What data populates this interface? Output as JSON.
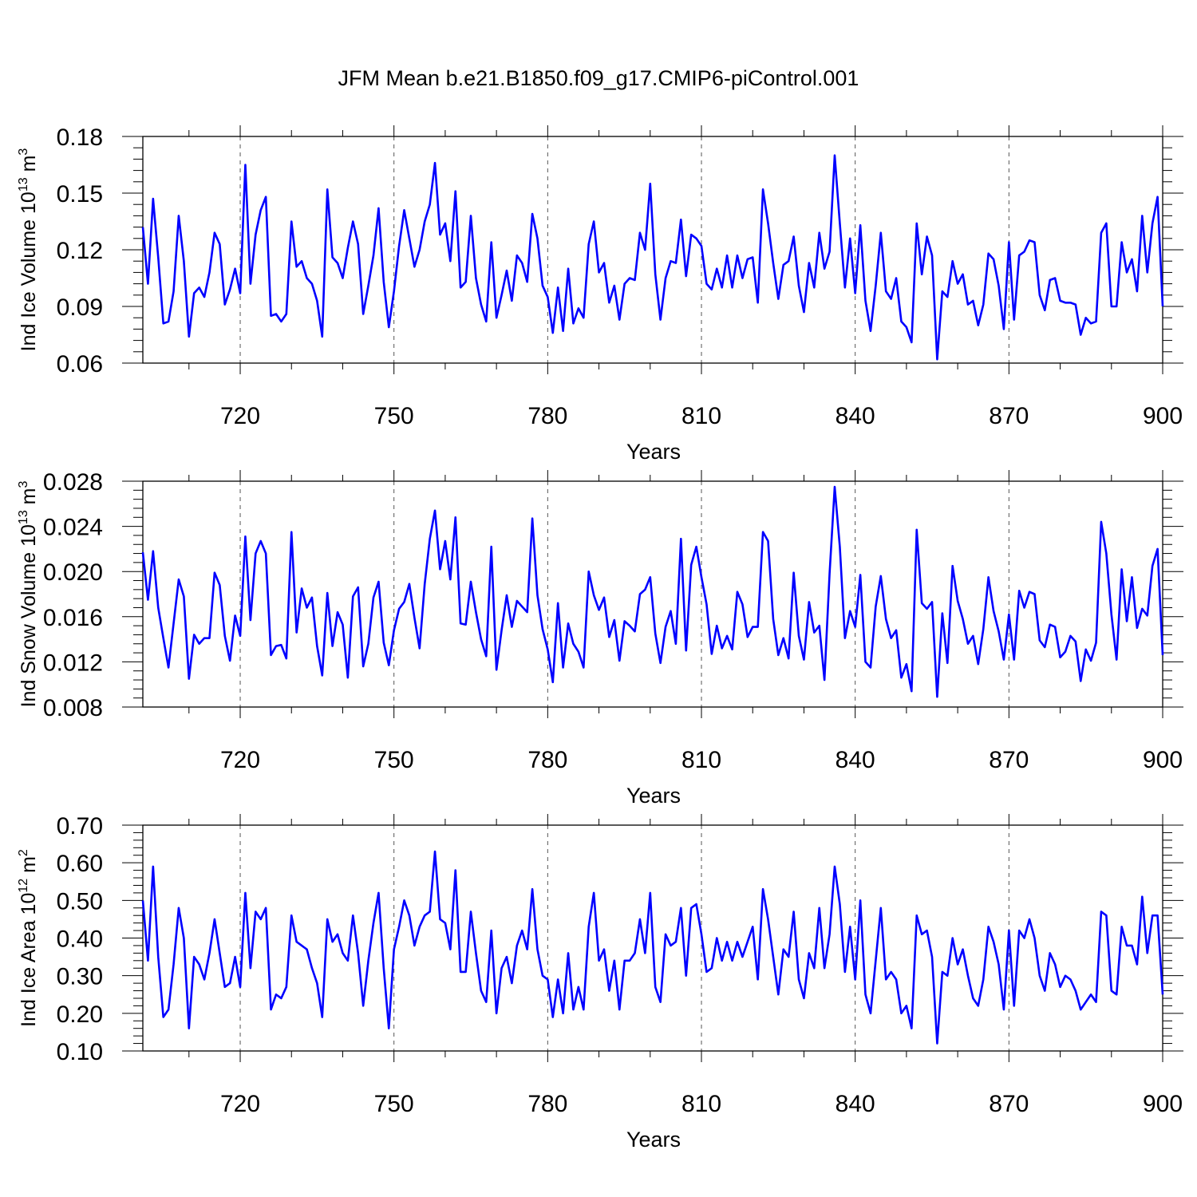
{
  "figure": {
    "title": "JFM Mean b.e21.B1850.f09_g17.CMIP6-piControl.001",
    "line_color": "#0000ff",
    "grid_color": "#555555",
    "x_ticks": [
      "720",
      "750",
      "780",
      "810",
      "840",
      "870",
      "900"
    ]
  },
  "chart_data": [
    {
      "type": "line",
      "title": "JFM Mean b.e21.B1850.f09_g17.CMIP6-piControl.001",
      "xlabel": "Years",
      "ylabel": "Ind Ice Volume 10¹³ m³",
      "ylabel_parts": [
        "Ind Ice Volume 10",
        "13",
        " m",
        "3"
      ],
      "xlim": [
        701,
        900
      ],
      "ylim": [
        0.06,
        0.18
      ],
      "yticks": [
        "0.06",
        "0.09",
        "0.12",
        "0.15",
        "0.18"
      ],
      "ytick_values": [
        0.06,
        0.09,
        0.12,
        0.15,
        0.18
      ],
      "grid": "vertical dashed at x ticks",
      "x_start": 701,
      "series": [
        {
          "values": [
            0.132,
            0.102,
            0.147,
            0.116,
            0.081,
            0.082,
            0.098,
            0.138,
            0.114,
            0.074,
            0.097,
            0.1,
            0.095,
            0.108,
            0.129,
            0.123,
            0.091,
            0.099,
            0.11,
            0.097,
            0.165,
            0.102,
            0.128,
            0.141,
            0.148,
            0.085,
            0.086,
            0.082,
            0.086,
            0.135,
            0.111,
            0.114,
            0.105,
            0.102,
            0.093,
            0.074,
            0.152,
            0.116,
            0.113,
            0.105,
            0.121,
            0.135,
            0.123,
            0.086,
            0.101,
            0.117,
            0.142,
            0.103,
            0.079,
            0.098,
            0.122,
            0.141,
            0.126,
            0.111,
            0.12,
            0.135,
            0.144,
            0.166,
            0.128,
            0.134,
            0.114,
            0.151,
            0.1,
            0.103,
            0.138,
            0.105,
            0.091,
            0.082,
            0.124,
            0.084,
            0.096,
            0.109,
            0.093,
            0.117,
            0.113,
            0.103,
            0.139,
            0.126,
            0.101,
            0.095,
            0.076,
            0.1,
            0.077,
            0.11,
            0.081,
            0.089,
            0.084,
            0.123,
            0.135,
            0.108,
            0.113,
            0.092,
            0.101,
            0.083,
            0.102,
            0.105,
            0.104,
            0.129,
            0.12,
            0.155,
            0.107,
            0.083,
            0.105,
            0.114,
            0.113,
            0.136,
            0.106,
            0.128,
            0.126,
            0.122,
            0.102,
            0.099,
            0.11,
            0.1,
            0.117,
            0.1,
            0.117,
            0.105,
            0.115,
            0.116,
            0.092,
            0.152,
            0.134,
            0.113,
            0.094,
            0.112,
            0.114,
            0.127,
            0.101,
            0.087,
            0.113,
            0.1,
            0.129,
            0.11,
            0.119,
            0.17,
            0.134,
            0.1,
            0.126,
            0.097,
            0.133,
            0.093,
            0.077,
            0.101,
            0.129,
            0.098,
            0.094,
            0.105,
            0.082,
            0.079,
            0.071,
            0.134,
            0.107,
            0.127,
            0.117,
            0.062,
            0.098,
            0.095,
            0.114,
            0.102,
            0.107,
            0.091,
            0.093,
            0.08,
            0.091,
            0.118,
            0.115,
            0.101,
            0.078,
            0.124,
            0.083,
            0.117,
            0.119,
            0.125,
            0.124,
            0.096,
            0.088,
            0.104,
            0.105,
            0.093,
            0.092,
            0.092,
            0.091,
            0.075,
            0.084,
            0.081,
            0.082,
            0.129,
            0.134,
            0.09,
            0.09,
            0.124,
            0.108,
            0.115,
            0.098,
            0.138,
            0.108,
            0.134,
            0.148,
            0.09
          ]
        }
      ]
    },
    {
      "type": "line",
      "xlabel": "Years",
      "ylabel": "Ind Snow Volume 10¹³ m³",
      "ylabel_parts": [
        "Ind Snow Volume 10",
        "13",
        " m",
        "3"
      ],
      "xlim": [
        701,
        900
      ],
      "ylim": [
        0.008,
        0.028
      ],
      "yticks": [
        "0.008",
        "0.012",
        "0.016",
        "0.020",
        "0.024",
        "0.028"
      ],
      "ytick_values": [
        0.008,
        0.012,
        0.016,
        0.02,
        0.024,
        0.028
      ],
      "grid": "vertical dashed at x ticks",
      "x_start": 701,
      "series": [
        {
          "values": [
            0.0217,
            0.0175,
            0.0218,
            0.0168,
            0.0141,
            0.0115,
            0.0154,
            0.0193,
            0.0178,
            0.0105,
            0.0144,
            0.0136,
            0.0141,
            0.0141,
            0.0199,
            0.0188,
            0.0143,
            0.0121,
            0.0161,
            0.0143,
            0.0231,
            0.0157,
            0.0216,
            0.0227,
            0.0216,
            0.0126,
            0.0134,
            0.0135,
            0.0123,
            0.0235,
            0.0146,
            0.0185,
            0.0168,
            0.0177,
            0.0134,
            0.0108,
            0.0181,
            0.0134,
            0.0164,
            0.0153,
            0.0106,
            0.0178,
            0.0186,
            0.0116,
            0.0136,
            0.0177,
            0.0191,
            0.0137,
            0.0117,
            0.0148,
            0.0167,
            0.0173,
            0.0189,
            0.0159,
            0.0132,
            0.0189,
            0.0229,
            0.0254,
            0.0202,
            0.0227,
            0.0193,
            0.0248,
            0.0154,
            0.0153,
            0.0191,
            0.0164,
            0.014,
            0.0125,
            0.0222,
            0.0113,
            0.0148,
            0.0179,
            0.0151,
            0.0174,
            0.0169,
            0.0164,
            0.0247,
            0.0179,
            0.0149,
            0.0131,
            0.0102,
            0.0172,
            0.0115,
            0.0154,
            0.0136,
            0.0129,
            0.0115,
            0.02,
            0.0179,
            0.0166,
            0.0177,
            0.0142,
            0.0157,
            0.0121,
            0.0156,
            0.0152,
            0.0147,
            0.018,
            0.0184,
            0.0195,
            0.0145,
            0.0119,
            0.0151,
            0.0165,
            0.0136,
            0.0229,
            0.013,
            0.0206,
            0.0222,
            0.0195,
            0.0171,
            0.0127,
            0.0152,
            0.0132,
            0.0143,
            0.0131,
            0.0182,
            0.0171,
            0.0142,
            0.0151,
            0.0151,
            0.0235,
            0.0227,
            0.0158,
            0.0126,
            0.0141,
            0.0123,
            0.0199,
            0.0143,
            0.0122,
            0.0173,
            0.0146,
            0.0152,
            0.0104,
            0.0198,
            0.0275,
            0.0222,
            0.0141,
            0.0165,
            0.0151,
            0.0197,
            0.012,
            0.0115,
            0.0169,
            0.0196,
            0.0158,
            0.0141,
            0.0148,
            0.0106,
            0.0118,
            0.0094,
            0.0237,
            0.0172,
            0.0167,
            0.0173,
            0.0089,
            0.0163,
            0.0119,
            0.0205,
            0.0174,
            0.0158,
            0.0136,
            0.0143,
            0.0118,
            0.0149,
            0.0195,
            0.0165,
            0.0147,
            0.0122,
            0.0162,
            0.0122,
            0.0183,
            0.0168,
            0.0182,
            0.018,
            0.0139,
            0.0133,
            0.0153,
            0.0151,
            0.0124,
            0.0129,
            0.0143,
            0.0138,
            0.0103,
            0.0131,
            0.0121,
            0.0137,
            0.0244,
            0.0216,
            0.0162,
            0.0122,
            0.0202,
            0.0156,
            0.0195,
            0.015,
            0.0167,
            0.0161,
            0.0205,
            0.022,
            0.0126
          ]
        }
      ]
    },
    {
      "type": "line",
      "xlabel": "Years",
      "ylabel": "Ind Ice Area 10¹² m²",
      "ylabel_parts": [
        "Ind Ice Area 10",
        "12",
        " m",
        "2"
      ],
      "xlim": [
        701,
        900
      ],
      "ylim": [
        0.1,
        0.7
      ],
      "yticks": [
        "0.10",
        "0.20",
        "0.30",
        "0.40",
        "0.50",
        "0.60",
        "0.70"
      ],
      "ytick_values": [
        0.1,
        0.2,
        0.3,
        0.4,
        0.5,
        0.6,
        0.7
      ],
      "grid": "vertical dashed at x ticks",
      "x_start": 701,
      "series": [
        {
          "values": [
            0.5,
            0.34,
            0.59,
            0.35,
            0.19,
            0.21,
            0.33,
            0.48,
            0.4,
            0.16,
            0.35,
            0.33,
            0.29,
            0.36,
            0.45,
            0.36,
            0.27,
            0.28,
            0.35,
            0.27,
            0.52,
            0.32,
            0.47,
            0.45,
            0.48,
            0.21,
            0.25,
            0.24,
            0.27,
            0.46,
            0.39,
            0.38,
            0.37,
            0.32,
            0.28,
            0.19,
            0.45,
            0.39,
            0.41,
            0.36,
            0.34,
            0.46,
            0.36,
            0.22,
            0.34,
            0.44,
            0.52,
            0.32,
            0.16,
            0.37,
            0.43,
            0.5,
            0.46,
            0.38,
            0.43,
            0.46,
            0.47,
            0.63,
            0.45,
            0.44,
            0.37,
            0.58,
            0.31,
            0.31,
            0.47,
            0.36,
            0.26,
            0.23,
            0.42,
            0.2,
            0.32,
            0.35,
            0.28,
            0.38,
            0.42,
            0.37,
            0.53,
            0.37,
            0.3,
            0.29,
            0.19,
            0.29,
            0.2,
            0.36,
            0.21,
            0.27,
            0.21,
            0.43,
            0.52,
            0.34,
            0.37,
            0.26,
            0.34,
            0.21,
            0.34,
            0.34,
            0.36,
            0.45,
            0.36,
            0.52,
            0.27,
            0.23,
            0.41,
            0.38,
            0.39,
            0.48,
            0.3,
            0.48,
            0.49,
            0.41,
            0.31,
            0.32,
            0.4,
            0.34,
            0.39,
            0.34,
            0.39,
            0.35,
            0.39,
            0.43,
            0.29,
            0.53,
            0.45,
            0.35,
            0.25,
            0.37,
            0.35,
            0.47,
            0.29,
            0.24,
            0.36,
            0.32,
            0.48,
            0.32,
            0.41,
            0.59,
            0.49,
            0.31,
            0.43,
            0.29,
            0.5,
            0.25,
            0.2,
            0.34,
            0.48,
            0.29,
            0.31,
            0.29,
            0.2,
            0.22,
            0.16,
            0.46,
            0.41,
            0.42,
            0.35,
            0.12,
            0.31,
            0.3,
            0.4,
            0.33,
            0.37,
            0.3,
            0.24,
            0.22,
            0.29,
            0.43,
            0.39,
            0.33,
            0.21,
            0.42,
            0.22,
            0.42,
            0.4,
            0.45,
            0.4,
            0.3,
            0.26,
            0.36,
            0.33,
            0.27,
            0.3,
            0.29,
            0.26,
            0.21,
            0.23,
            0.25,
            0.23,
            0.47,
            0.46,
            0.26,
            0.25,
            0.43,
            0.38,
            0.38,
            0.33,
            0.51,
            0.36,
            0.46,
            0.46,
            0.25
          ]
        }
      ]
    }
  ]
}
